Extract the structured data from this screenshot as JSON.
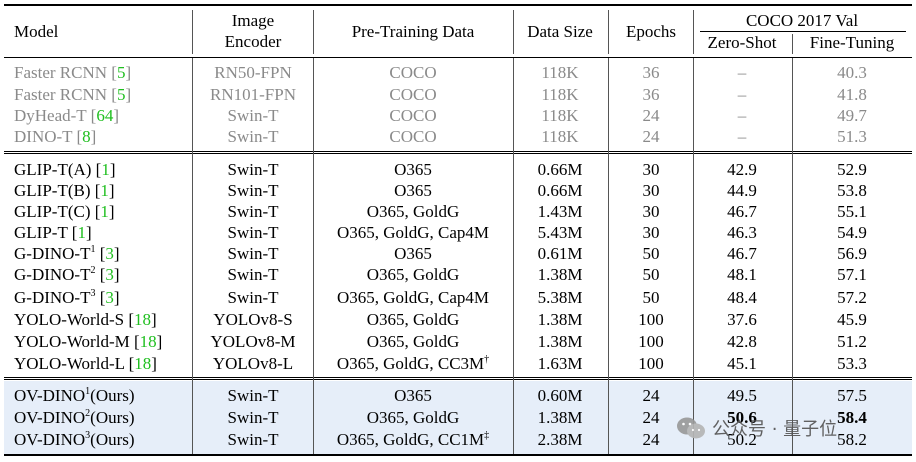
{
  "header": {
    "model": "Model",
    "image_encoder_1": "Image",
    "image_encoder_2": "Encoder",
    "pretraining_data": "Pre-Training Data",
    "data_size": "Data Size",
    "epochs": "Epochs",
    "coco_group": "COCO 2017 Val",
    "zero_shot": "Zero-Shot",
    "fine_tuning": "Fine-Tuning"
  },
  "rows": [
    {
      "model": "Faster RCNN ",
      "ref": "5",
      "sup": "",
      "suffix": "",
      "encoder": "RN50-FPN",
      "data": "COCO",
      "data_sup": "",
      "size": "118K",
      "epochs": "36",
      "zs": "–",
      "ft": "40.3"
    },
    {
      "model": "Faster RCNN ",
      "ref": "5",
      "sup": "",
      "suffix": "",
      "encoder": "RN101-FPN",
      "data": "COCO",
      "data_sup": "",
      "size": "118K",
      "epochs": "36",
      "zs": "–",
      "ft": "41.8"
    },
    {
      "model": "DyHead-T ",
      "ref": "64",
      "sup": "",
      "suffix": "",
      "encoder": "Swin-T",
      "data": "COCO",
      "data_sup": "",
      "size": "118K",
      "epochs": "24",
      "zs": "–",
      "ft": "49.7"
    },
    {
      "model": "DINO-T ",
      "ref": "8",
      "sup": "",
      "suffix": "",
      "encoder": "Swin-T",
      "data": "COCO",
      "data_sup": "",
      "size": "118K",
      "epochs": "24",
      "zs": "–",
      "ft": "51.3"
    },
    {
      "model": "GLIP-T(A) ",
      "ref": "1",
      "sup": "",
      "suffix": "",
      "encoder": "Swin-T",
      "data": "O365",
      "data_sup": "",
      "size": "0.66M",
      "epochs": "30",
      "zs": "42.9",
      "ft": "52.9"
    },
    {
      "model": "GLIP-T(B) ",
      "ref": "1",
      "sup": "",
      "suffix": "",
      "encoder": "Swin-T",
      "data": "O365",
      "data_sup": "",
      "size": "0.66M",
      "epochs": "30",
      "zs": "44.9",
      "ft": "53.8"
    },
    {
      "model": "GLIP-T(C) ",
      "ref": "1",
      "sup": "",
      "suffix": "",
      "encoder": "Swin-T",
      "data": "O365, GoldG",
      "data_sup": "",
      "size": "1.43M",
      "epochs": "30",
      "zs": "46.7",
      "ft": "55.1"
    },
    {
      "model": "GLIP-T ",
      "ref": "1",
      "sup": "",
      "suffix": "",
      "encoder": "Swin-T",
      "data": "O365, GoldG, Cap4M",
      "data_sup": "",
      "size": "5.43M",
      "epochs": "30",
      "zs": "46.3",
      "ft": "54.9"
    },
    {
      "model": "G-DINO-T",
      "ref": "3",
      "sup": "1",
      "suffix": "",
      "encoder": "Swin-T",
      "data": "O365",
      "data_sup": "",
      "size": "0.61M",
      "epochs": "50",
      "zs": "46.7",
      "ft": "56.9"
    },
    {
      "model": "G-DINO-T",
      "ref": "3",
      "sup": "2",
      "suffix": "",
      "encoder": "Swin-T",
      "data": "O365, GoldG",
      "data_sup": "",
      "size": "1.38M",
      "epochs": "50",
      "zs": "48.1",
      "ft": "57.1"
    },
    {
      "model": "G-DINO-T",
      "ref": "3",
      "sup": "3",
      "suffix": "",
      "encoder": "Swin-T",
      "data": "O365, GoldG, Cap4M",
      "data_sup": "",
      "size": "5.38M",
      "epochs": "50",
      "zs": "48.4",
      "ft": "57.2"
    },
    {
      "model": "YOLO-World-S ",
      "ref": "18",
      "sup": "",
      "suffix": "",
      "encoder": "YOLOv8-S",
      "data": "O365, GoldG",
      "data_sup": "",
      "size": "1.38M",
      "epochs": "100",
      "zs": "37.6",
      "ft": "45.9"
    },
    {
      "model": "YOLO-World-M ",
      "ref": "18",
      "sup": "",
      "suffix": "",
      "encoder": "YOLOv8-M",
      "data": "O365, GoldG",
      "data_sup": "",
      "size": "1.38M",
      "epochs": "100",
      "zs": "42.8",
      "ft": "51.2"
    },
    {
      "model": "YOLO-World-L ",
      "ref": "18",
      "sup": "",
      "suffix": "",
      "encoder": "YOLOv8-L",
      "data": "O365, GoldG, CC3M",
      "data_sup": "†",
      "size": "1.63M",
      "epochs": "100",
      "zs": "45.1",
      "ft": "53.3"
    },
    {
      "model": "OV-DINO",
      "ref": "",
      "sup": "1",
      "suffix": "(Ours)",
      "encoder": "Swin-T",
      "data": "O365",
      "data_sup": "",
      "size": "0.60M",
      "epochs": "24",
      "zs": "49.5",
      "ft": "57.5"
    },
    {
      "model": "OV-DINO",
      "ref": "",
      "sup": "2",
      "suffix": "(Ours)",
      "encoder": "Swin-T",
      "data": "O365, GoldG",
      "data_sup": "",
      "size": "1.38M",
      "epochs": "24",
      "zs": "50.6",
      "ft": "58.4"
    },
    {
      "model": "OV-DINO",
      "ref": "",
      "sup": "3",
      "suffix": "(Ours)",
      "encoder": "Swin-T",
      "data": "O365, GoldG, CC1M",
      "data_sup": "‡",
      "size": "2.38M",
      "epochs": "24",
      "zs": "50.2",
      "ft": "58.2"
    }
  ],
  "watermark": "公众号 · 量子位",
  "colors": {
    "reference": "#1fbf1f",
    "baseline_gray": "#8a8a8a",
    "highlight": "#e6eef9"
  }
}
